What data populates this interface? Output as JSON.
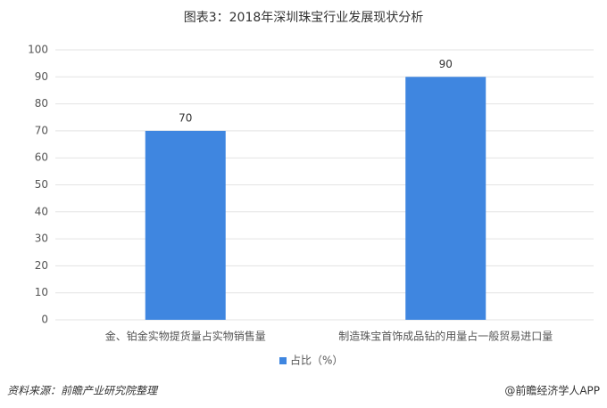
{
  "chart_data": {
    "type": "bar",
    "title": "图表3：2018年深圳珠宝行业发展现状分析",
    "categories": [
      "金、铂金实物提货量占实物销售量",
      "制造珠宝首饰成品钻的用量占一般贸易进口量"
    ],
    "series": [
      {
        "name": "占比（%）",
        "color": "#3f86e0",
        "values": [
          70,
          90
        ]
      }
    ],
    "ylim": [
      0,
      100
    ],
    "yticks": [
      0,
      10,
      20,
      30,
      40,
      50,
      60,
      70,
      80,
      90,
      100
    ],
    "grid": true,
    "legend": "bottom",
    "source": "资料来源：前瞻产业研究院整理",
    "credit": "@前瞻经济学人APP"
  }
}
